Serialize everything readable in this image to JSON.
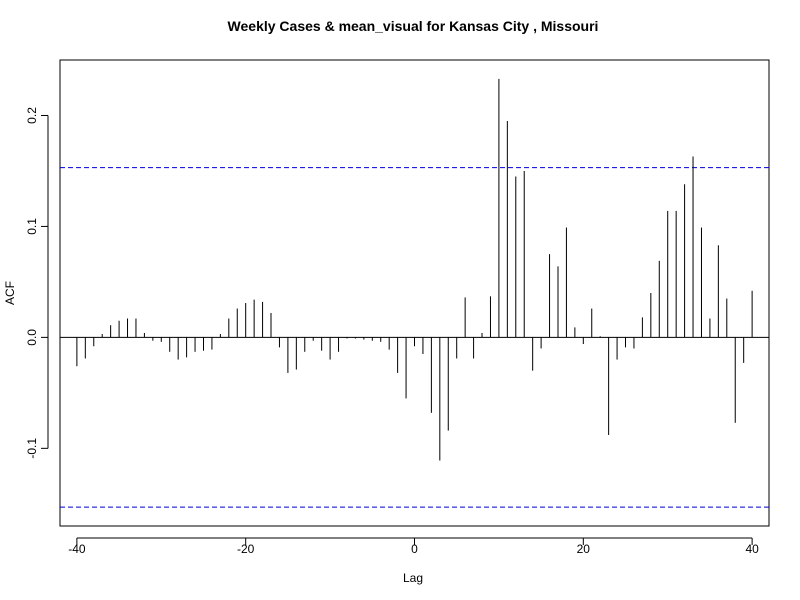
{
  "chart_data": {
    "type": "bar",
    "title": "Weekly Cases & mean_visual for Kansas City , Missouri",
    "xlabel": "Lag",
    "ylabel": "ACF",
    "xlim": [
      -42,
      42
    ],
    "ylim": [
      -0.17,
      0.25
    ],
    "x_ticks": [
      -40,
      -20,
      0,
      20,
      40
    ],
    "x_tick_labels": [
      "-40",
      "-20",
      "0",
      "20",
      "40"
    ],
    "y_ticks": [
      -0.1,
      0.0,
      0.1,
      0.2
    ],
    "y_tick_labels": [
      "-0.1",
      "0.0",
      "0.1",
      "0.2"
    ],
    "confidence_bound": 0.153,
    "confidence_color": "#0000CC",
    "bar_color": "#000000",
    "lags": [
      -40,
      -39,
      -38,
      -37,
      -36,
      -35,
      -34,
      -33,
      -32,
      -31,
      -30,
      -29,
      -28,
      -27,
      -26,
      -25,
      -24,
      -23,
      -22,
      -21,
      -20,
      -19,
      -18,
      -17,
      -16,
      -15,
      -14,
      -13,
      -12,
      -11,
      -10,
      -9,
      -8,
      -7,
      -6,
      -5,
      -4,
      -3,
      -2,
      -1,
      0,
      1,
      2,
      3,
      4,
      5,
      6,
      7,
      8,
      9,
      10,
      11,
      12,
      13,
      14,
      15,
      16,
      17,
      18,
      19,
      20,
      21,
      22,
      23,
      24,
      25,
      26,
      27,
      28,
      29,
      30,
      31,
      32,
      33,
      34,
      35,
      36,
      37,
      38,
      39,
      40
    ],
    "values": [
      -0.026,
      -0.019,
      -0.008,
      0.003,
      0.011,
      0.015,
      0.017,
      0.017,
      0.004,
      -0.003,
      -0.004,
      -0.013,
      -0.02,
      -0.018,
      -0.013,
      -0.012,
      -0.011,
      0.003,
      0.017,
      0.026,
      0.031,
      0.034,
      0.032,
      0.022,
      -0.009,
      -0.032,
      -0.029,
      -0.013,
      -0.003,
      -0.012,
      -0.02,
      -0.013,
      -0.001,
      -0.001,
      -0.002,
      -0.003,
      -0.004,
      -0.011,
      -0.032,
      -0.055,
      -0.008,
      -0.015,
      -0.068,
      -0.111,
      -0.084,
      -0.019,
      0.036,
      -0.019,
      0.004,
      0.037,
      0.233,
      0.195,
      0.145,
      0.15,
      -0.03,
      -0.01,
      0.075,
      0.064,
      0.099,
      0.009,
      -0.006,
      0.026,
      0.001,
      -0.088,
      -0.02,
      -0.009,
      -0.01,
      0.018,
      0.04,
      0.069,
      0.114,
      0.114,
      0.138,
      0.163,
      0.099,
      0.017,
      0.083,
      0.035,
      -0.077,
      -0.023,
      0.042
    ]
  }
}
